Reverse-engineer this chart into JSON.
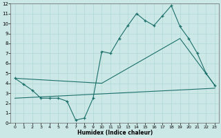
{
  "xlabel": "Humidex (Indice chaleur)",
  "bg_color": "#cce8e6",
  "grid_color": "#b0d8d5",
  "line_color": "#1a6e6a",
  "xlim": [
    -0.5,
    23.5
  ],
  "ylim": [
    0,
    12
  ],
  "xticks": [
    0,
    1,
    2,
    3,
    4,
    5,
    6,
    7,
    8,
    9,
    10,
    11,
    12,
    13,
    14,
    15,
    16,
    17,
    18,
    19,
    20,
    21,
    22,
    23
  ],
  "yticks": [
    0,
    1,
    2,
    3,
    4,
    5,
    6,
    7,
    8,
    9,
    10,
    11,
    12
  ],
  "line1_x": [
    0,
    1,
    2,
    3,
    4,
    5,
    6,
    7,
    8,
    9,
    10,
    11,
    12,
    13,
    14,
    15,
    16,
    17,
    18,
    19,
    20,
    21,
    22,
    23
  ],
  "line1_y": [
    4.5,
    3.9,
    3.3,
    2.5,
    2.5,
    2.5,
    2.2,
    0.3,
    0.5,
    2.5,
    7.2,
    7.0,
    8.5,
    9.8,
    11.0,
    10.3,
    9.8,
    10.8,
    11.8,
    9.7,
    8.5,
    7.0,
    5.0,
    3.8
  ],
  "line2_x": [
    0,
    10,
    19,
    23
  ],
  "line2_y": [
    4.5,
    4.0,
    8.5,
    3.8
  ],
  "line3_x": [
    0,
    23
  ],
  "line3_y": [
    2.5,
    3.5
  ]
}
